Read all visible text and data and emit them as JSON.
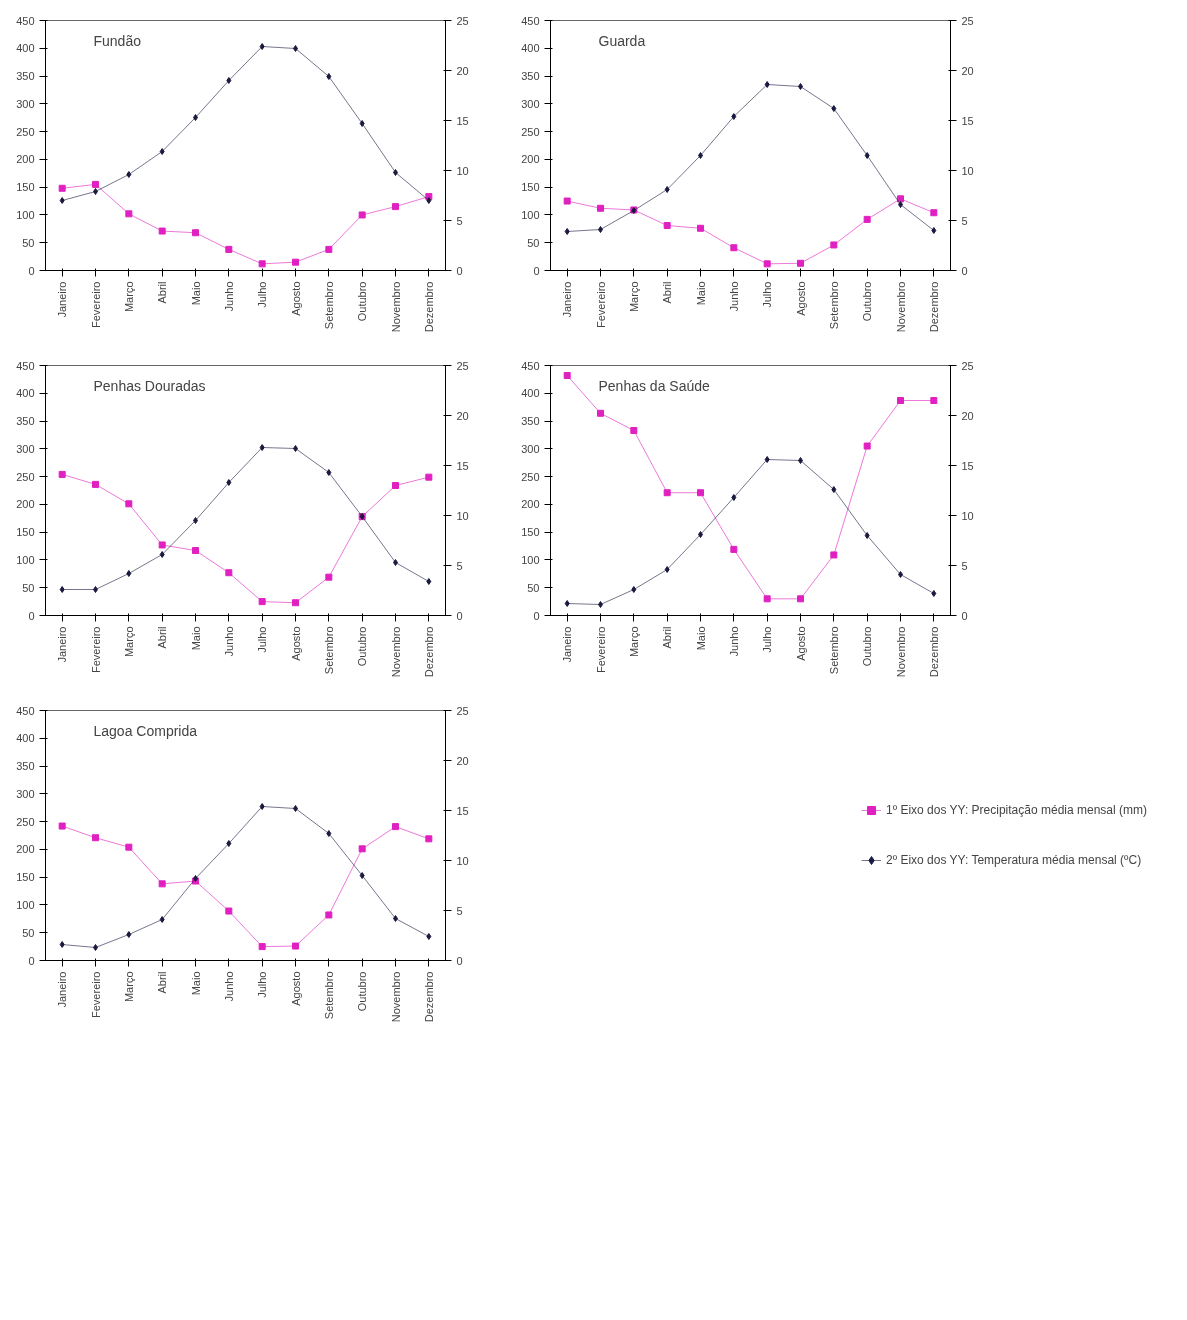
{
  "chart_data": [
    {
      "type": "line",
      "title": "Fundão",
      "categories": [
        "Janeiro",
        "Fevereiro",
        "Março",
        "Abril",
        "Maio",
        "Junho",
        "Julho",
        "Agosto",
        "Setembro",
        "Outubro",
        "Novembro",
        "Dezembro"
      ],
      "ylim": [
        0,
        450
      ],
      "yticks": [
        0,
        50,
        100,
        150,
        200,
        250,
        300,
        350,
        400,
        450
      ],
      "y2lim": [
        0,
        25
      ],
      "y2ticks": [
        0,
        5,
        10,
        15,
        20,
        25
      ],
      "series": [
        {
          "color": "#e020c0",
          "marker": "square",
          "values": [
            148,
            155,
            102,
            71,
            68,
            38,
            12,
            15,
            38,
            100,
            115,
            133
          ]
        },
        {
          "color": "#1a1a40",
          "marker": "diamond",
          "axis": "y2",
          "values": [
            7.0,
            7.9,
            9.6,
            11.9,
            15.3,
            19.0,
            22.4,
            22.2,
            19.4,
            14.7,
            9.8,
            7.0
          ]
        }
      ]
    },
    {
      "type": "line",
      "title": "Guarda",
      "categories": [
        "Janeiro",
        "Fevereiro",
        "Março",
        "Abril",
        "Maio",
        "Junho",
        "Julho",
        "Agosto",
        "Setembro",
        "Outubro",
        "Novembro",
        "Dezembro"
      ],
      "ylim": [
        0,
        450
      ],
      "yticks": [
        0,
        50,
        100,
        150,
        200,
        250,
        300,
        350,
        400,
        450
      ],
      "y2lim": [
        0,
        25
      ],
      "y2ticks": [
        0,
        5,
        10,
        15,
        20,
        25
      ],
      "series": [
        {
          "color": "#e020c0",
          "marker": "square",
          "values": [
            125,
            112,
            109,
            81,
            76,
            41,
            12,
            13,
            46,
            92,
            129,
            104
          ]
        },
        {
          "color": "#1a1a40",
          "marker": "diamond",
          "axis": "y2",
          "values": [
            3.9,
            4.1,
            6.0,
            8.1,
            11.5,
            15.4,
            18.6,
            18.4,
            16.2,
            11.5,
            6.6,
            4.0
          ]
        }
      ]
    },
    {
      "type": "line",
      "title": "Penhas Douradas",
      "categories": [
        "Janeiro",
        "Fevereiro",
        "Março",
        "Abril",
        "Maio",
        "Junho",
        "Julho",
        "Agosto",
        "Setembro",
        "Outubro",
        "Novembro",
        "Dezembro"
      ],
      "ylim": [
        0,
        450
      ],
      "yticks": [
        0,
        50,
        100,
        150,
        200,
        250,
        300,
        350,
        400,
        450
      ],
      "y2lim": [
        0,
        25
      ],
      "y2ticks": [
        0,
        5,
        10,
        15,
        20,
        25
      ],
      "series": [
        {
          "color": "#e020c0",
          "marker": "square",
          "values": [
            254,
            236,
            201,
            127,
            117,
            77,
            25,
            23,
            69,
            178,
            234,
            249
          ]
        },
        {
          "color": "#1a1a40",
          "marker": "diamond",
          "axis": "y2",
          "values": [
            2.6,
            2.6,
            4.2,
            6.1,
            9.5,
            13.3,
            16.8,
            16.7,
            14.3,
            9.9,
            5.3,
            3.4
          ]
        }
      ]
    },
    {
      "type": "line",
      "title": "Penhas da Saúde",
      "categories": [
        "Janeiro",
        "Fevereiro",
        "Março",
        "Abril",
        "Maio",
        "Junho",
        "Julho",
        "Agosto",
        "Setembro",
        "Outubro",
        "Novembro",
        "Dezembro"
      ],
      "ylim": [
        0,
        450
      ],
      "yticks": [
        0,
        50,
        100,
        150,
        200,
        250,
        300,
        350,
        400,
        450
      ],
      "y2lim": [
        0,
        25
      ],
      "y2ticks": [
        0,
        5,
        10,
        15,
        20,
        25
      ],
      "series": [
        {
          "color": "#e020c0",
          "marker": "square",
          "values": [
            432,
            364,
            333,
            221,
            221,
            119,
            30,
            30,
            109,
            305,
            387,
            387
          ]
        },
        {
          "color": "#1a1a40",
          "marker": "diamond",
          "axis": "y2",
          "values": [
            1.2,
            1.1,
            2.6,
            4.6,
            8.1,
            11.8,
            15.6,
            15.5,
            12.6,
            8.0,
            4.1,
            2.2
          ]
        }
      ]
    },
    {
      "type": "line",
      "title": "Lagoa Comprida",
      "categories": [
        "Janeiro",
        "Fevereiro",
        "Março",
        "Abril",
        "Maio",
        "Junho",
        "Julho",
        "Agosto",
        "Setembro",
        "Outubro",
        "Novembro",
        "Dezembro"
      ],
      "ylim": [
        0,
        450
      ],
      "yticks": [
        0,
        50,
        100,
        150,
        200,
        250,
        300,
        350,
        400,
        450
      ],
      "y2lim": [
        0,
        25
      ],
      "y2ticks": [
        0,
        5,
        10,
        15,
        20,
        25
      ],
      "legend": "right",
      "series": [
        {
          "name": "1º Eixo dos YY: Precipitação média mensal (mm)",
          "color": "#e020c0",
          "marker": "square",
          "values": [
            242,
            221,
            204,
            138,
            143,
            89,
            25,
            26,
            82,
            201,
            241,
            219
          ]
        },
        {
          "name": "2º Eixo dos YY: Temperatura média mensal (ºC)",
          "color": "#1a1a40",
          "marker": "diamond",
          "axis": "y2",
          "values": [
            1.6,
            1.3,
            2.6,
            4.1,
            8.2,
            11.7,
            15.4,
            15.2,
            12.7,
            8.5,
            4.2,
            2.4
          ]
        }
      ]
    }
  ]
}
